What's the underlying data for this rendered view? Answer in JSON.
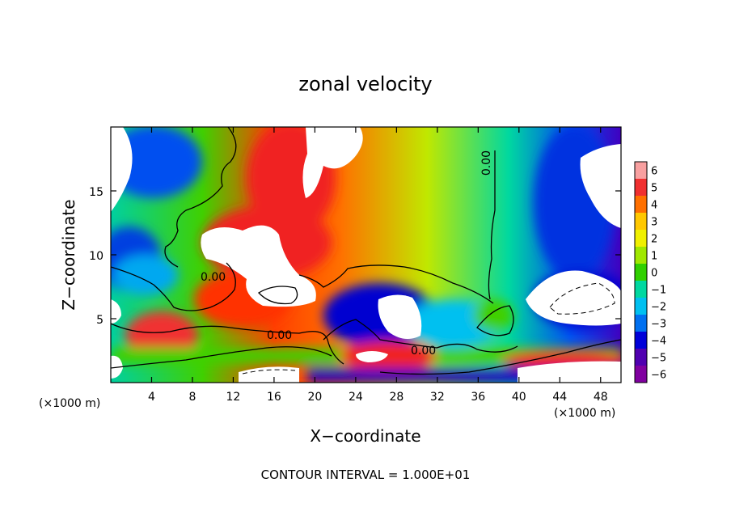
{
  "chart_data": {
    "type": "heatmap",
    "title": "zonal velocity",
    "xlabel": "X−coordinate",
    "ylabel": "Z−coordinate",
    "x_unit": "(×1000 m)",
    "y_unit": "(×1000 m)",
    "xlim": [
      0,
      50
    ],
    "ylim": [
      0,
      20
    ],
    "x_ticks": [
      4,
      8,
      12,
      16,
      20,
      24,
      28,
      32,
      36,
      40,
      44,
      48
    ],
    "y_ticks": [
      5,
      10,
      15
    ],
    "colorbar": {
      "ticks": [
        "6",
        "5",
        "4",
        "3",
        "2",
        "1",
        "0",
        "−1",
        "−2",
        "−3",
        "−4",
        "−5",
        "−6"
      ],
      "levels": [
        6,
        5,
        4,
        3,
        2,
        1,
        0,
        -1,
        -2,
        -3,
        -4,
        -5,
        -6
      ],
      "colors": [
        "#f8a0a0",
        "#f03030",
        "#ff7000",
        "#ffc800",
        "#f0f000",
        "#a0e800",
        "#30d000",
        "#00d8a0",
        "#00c0f0",
        "#0070f0",
        "#0000d8",
        "#5000b0",
        "#8000a0"
      ]
    },
    "contour_labels": [
      "0.00",
      "0.00",
      "0.00",
      "0.00"
    ],
    "note": "CONTOUR INTERVAL = 1.000E+01"
  }
}
